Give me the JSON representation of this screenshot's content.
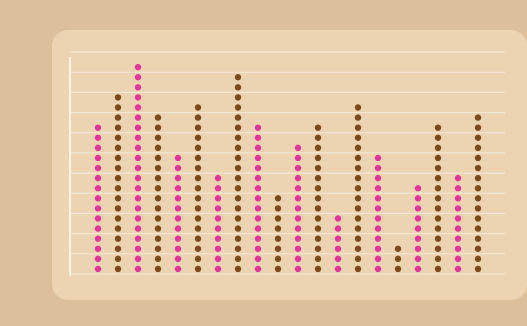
{
  "chart_data": {
    "type": "dot_column",
    "values": [
      15,
      18,
      21,
      16,
      12,
      17,
      10,
      20,
      15,
      8,
      13,
      15,
      6,
      17,
      12,
      3,
      9,
      15,
      10,
      16
    ],
    "colors": [
      "#e3369b",
      "#7b4a1d"
    ],
    "ylim": [
      0,
      22
    ],
    "yticks": [
      0,
      2,
      4,
      6,
      8,
      10,
      12,
      14,
      16,
      18,
      20,
      22
    ],
    "grid": true
  }
}
